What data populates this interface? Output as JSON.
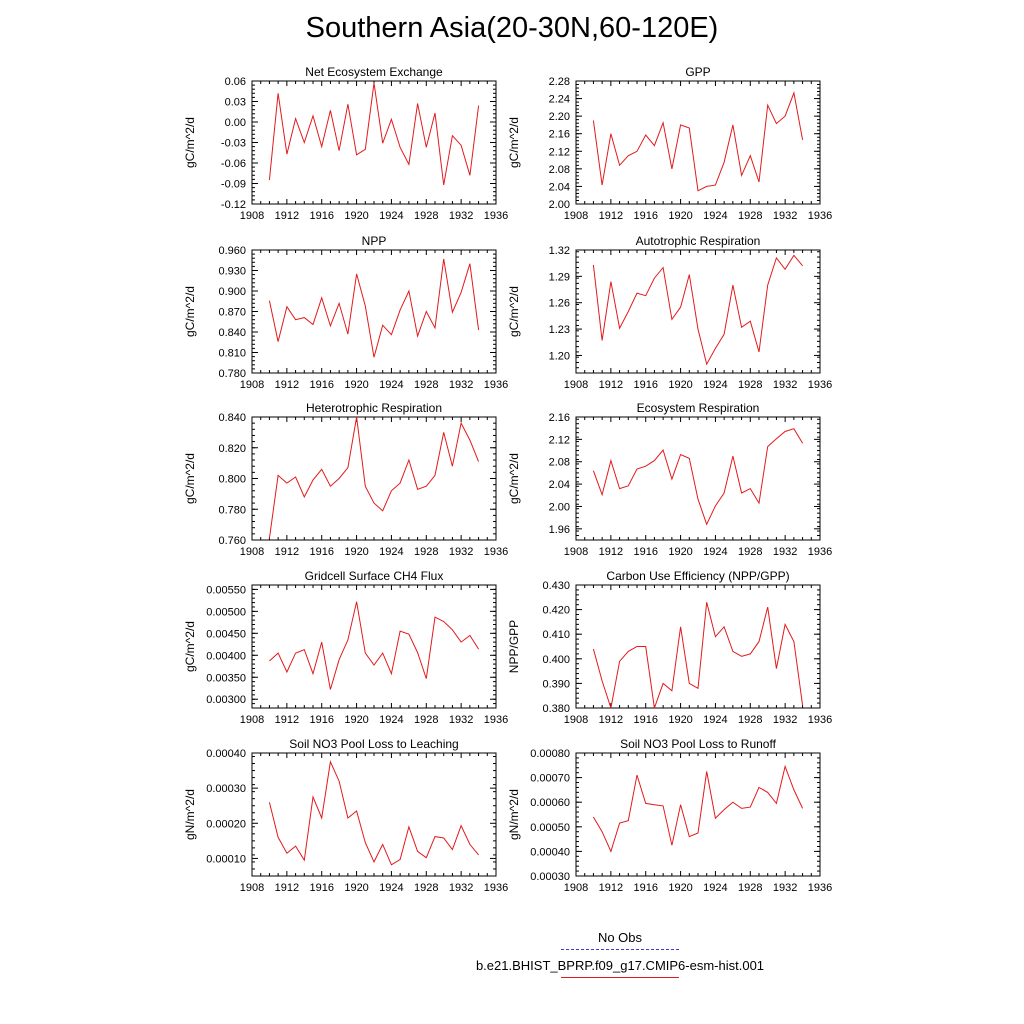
{
  "title": "Southern Asia(20-30N,60-120E)",
  "legend": {
    "obs_label": "No Obs",
    "obs_color": "#3b3bd6",
    "model_label": "b.e21.BHIST_BPRP.f09_g17.CMIP6-esm-hist.001",
    "model_color": "#e31a1c"
  },
  "chart_data": [
    {
      "type": "line",
      "title": "Net Ecosystem Exchange",
      "ylabel": "gC/m^2/d",
      "xlim": [
        1908,
        1936
      ],
      "xticks": [
        1908,
        1912,
        1916,
        1920,
        1924,
        1928,
        1932,
        1936
      ],
      "xtick_labels": [
        "1908",
        "1912",
        "1916",
        "1920",
        "1924",
        "1928",
        "1932",
        "1936"
      ],
      "ylim": [
        -0.12,
        0.06
      ],
      "yticks": [
        -0.12,
        -0.09,
        -0.06,
        -0.03,
        0.0,
        0.03,
        0.06
      ],
      "ytick_labels": [
        "-0.12",
        "-0.09",
        "-0.06",
        "-0.03",
        "0.00",
        "0.03",
        "0.06"
      ],
      "x": [
        1910,
        1911,
        1912,
        1913,
        1914,
        1915,
        1916,
        1917,
        1918,
        1919,
        1920,
        1921,
        1922,
        1923,
        1924,
        1925,
        1926,
        1927,
        1928,
        1929,
        1930,
        1931,
        1932,
        1933,
        1934
      ],
      "values": [
        -0.085,
        0.042,
        -0.047,
        0.005,
        -0.03,
        0.009,
        -0.036,
        0.017,
        -0.042,
        0.026,
        -0.048,
        -0.04,
        0.057,
        -0.031,
        0.004,
        -0.037,
        -0.062,
        0.027,
        -0.037,
        0.013,
        -0.092,
        -0.02,
        -0.034,
        -0.078,
        0.024
      ]
    },
    {
      "type": "line",
      "title": "GPP",
      "ylabel": "gC/m^2/d",
      "xlim": [
        1908,
        1936
      ],
      "xticks": [
        1908,
        1912,
        1916,
        1920,
        1924,
        1928,
        1932,
        1936
      ],
      "xtick_labels": [
        "1908",
        "1912",
        "1916",
        "1920",
        "1924",
        "1928",
        "1932",
        "1936"
      ],
      "ylim": [
        2.0,
        2.28
      ],
      "yticks": [
        2.0,
        2.04,
        2.08,
        2.12,
        2.16,
        2.2,
        2.24,
        2.28
      ],
      "ytick_labels": [
        "2.00",
        "2.04",
        "2.08",
        "2.12",
        "2.16",
        "2.20",
        "2.24",
        "2.28"
      ],
      "x": [
        1910,
        1911,
        1912,
        1913,
        1914,
        1915,
        1916,
        1917,
        1918,
        1919,
        1920,
        1921,
        1922,
        1923,
        1924,
        1925,
        1926,
        1927,
        1928,
        1929,
        1930,
        1931,
        1932,
        1933,
        1934
      ],
      "values": [
        2.19,
        2.043,
        2.16,
        2.088,
        2.11,
        2.12,
        2.157,
        2.133,
        2.185,
        2.08,
        2.18,
        2.173,
        2.03,
        2.04,
        2.043,
        2.095,
        2.18,
        2.065,
        2.11,
        2.05,
        2.225,
        2.183,
        2.2,
        2.253,
        2.146
      ]
    },
    {
      "type": "line",
      "title": "NPP",
      "ylabel": "gC/m^2/d",
      "xlim": [
        1908,
        1936
      ],
      "xticks": [
        1908,
        1912,
        1916,
        1920,
        1924,
        1928,
        1932,
        1936
      ],
      "xtick_labels": [
        "1908",
        "1912",
        "1916",
        "1920",
        "1924",
        "1928",
        "1932",
        "1936"
      ],
      "ylim": [
        0.78,
        0.96
      ],
      "yticks": [
        0.78,
        0.81,
        0.84,
        0.87,
        0.9,
        0.93,
        0.96
      ],
      "ytick_labels": [
        "0.780",
        "0.810",
        "0.840",
        "0.870",
        "0.900",
        "0.930",
        "0.960"
      ],
      "x": [
        1910,
        1911,
        1912,
        1913,
        1914,
        1915,
        1916,
        1917,
        1918,
        1919,
        1920,
        1921,
        1922,
        1923,
        1924,
        1925,
        1926,
        1927,
        1928,
        1929,
        1930,
        1931,
        1932,
        1933,
        1934
      ],
      "values": [
        0.886,
        0.826,
        0.877,
        0.858,
        0.861,
        0.851,
        0.89,
        0.849,
        0.882,
        0.837,
        0.925,
        0.878,
        0.803,
        0.85,
        0.836,
        0.872,
        0.9,
        0.834,
        0.87,
        0.846,
        0.947,
        0.869,
        0.898,
        0.94,
        0.843
      ]
    },
    {
      "type": "line",
      "title": "Autotrophic Respiration",
      "ylabel": "gC/m^2/d",
      "xlim": [
        1908,
        1936
      ],
      "xticks": [
        1908,
        1912,
        1916,
        1920,
        1924,
        1928,
        1932,
        1936
      ],
      "xtick_labels": [
        "1908",
        "1912",
        "1916",
        "1920",
        "1924",
        "1928",
        "1932",
        "1936"
      ],
      "ylim": [
        1.18,
        1.32
      ],
      "yticks": [
        1.2,
        1.23,
        1.26,
        1.29,
        1.32
      ],
      "ytick_labels": [
        "1.20",
        "1.23",
        "1.26",
        "1.29",
        "1.32"
      ],
      "x": [
        1910,
        1911,
        1912,
        1913,
        1914,
        1915,
        1916,
        1917,
        1918,
        1919,
        1920,
        1921,
        1922,
        1923,
        1924,
        1925,
        1926,
        1927,
        1928,
        1929,
        1930,
        1931,
        1932,
        1933,
        1934
      ],
      "values": [
        1.303,
        1.217,
        1.284,
        1.231,
        1.25,
        1.271,
        1.268,
        1.288,
        1.3,
        1.241,
        1.255,
        1.292,
        1.23,
        1.19,
        1.208,
        1.224,
        1.28,
        1.232,
        1.239,
        1.204,
        1.28,
        1.311,
        1.298,
        1.314,
        1.302
      ]
    },
    {
      "type": "line",
      "title": "Heterotrophic Respiration",
      "ylabel": "gC/m^2/d",
      "xlim": [
        1908,
        1936
      ],
      "xticks": [
        1908,
        1912,
        1916,
        1920,
        1924,
        1928,
        1932,
        1936
      ],
      "xtick_labels": [
        "1908",
        "1912",
        "1916",
        "1920",
        "1924",
        "1928",
        "1932",
        "1936"
      ],
      "ylim": [
        0.76,
        0.84
      ],
      "yticks": [
        0.76,
        0.78,
        0.8,
        0.82,
        0.84
      ],
      "ytick_labels": [
        "0.760",
        "0.780",
        "0.800",
        "0.820",
        "0.840"
      ],
      "x": [
        1910,
        1911,
        1912,
        1913,
        1914,
        1915,
        1916,
        1917,
        1918,
        1919,
        1920,
        1921,
        1922,
        1923,
        1924,
        1925,
        1926,
        1927,
        1928,
        1929,
        1930,
        1931,
        1932,
        1933,
        1934
      ],
      "values": [
        0.761,
        0.802,
        0.797,
        0.801,
        0.788,
        0.799,
        0.806,
        0.795,
        0.8,
        0.807,
        0.84,
        0.795,
        0.784,
        0.779,
        0.792,
        0.797,
        0.812,
        0.793,
        0.795,
        0.802,
        0.83,
        0.808,
        0.836,
        0.825,
        0.811
      ]
    },
    {
      "type": "line",
      "title": "Ecosystem Respiration",
      "ylabel": "gC/m^2/d",
      "xlim": [
        1908,
        1936
      ],
      "xticks": [
        1908,
        1912,
        1916,
        1920,
        1924,
        1928,
        1932,
        1936
      ],
      "xtick_labels": [
        "1908",
        "1912",
        "1916",
        "1920",
        "1924",
        "1928",
        "1932",
        "1936"
      ],
      "ylim": [
        1.94,
        2.16
      ],
      "yticks": [
        1.96,
        2.0,
        2.04,
        2.08,
        2.12,
        2.16
      ],
      "ytick_labels": [
        "1.96",
        "2.00",
        "2.04",
        "2.08",
        "2.12",
        "2.16"
      ],
      "x": [
        1910,
        1911,
        1912,
        1913,
        1914,
        1915,
        1916,
        1917,
        1918,
        1919,
        1920,
        1921,
        1922,
        1923,
        1924,
        1925,
        1926,
        1927,
        1928,
        1929,
        1930,
        1931,
        1932,
        1933,
        1934
      ],
      "values": [
        2.064,
        2.021,
        2.082,
        2.032,
        2.037,
        2.067,
        2.072,
        2.082,
        2.101,
        2.049,
        2.093,
        2.086,
        2.013,
        1.968,
        2.001,
        2.024,
        2.09,
        2.024,
        2.032,
        2.006,
        2.107,
        2.121,
        2.134,
        2.139,
        2.113
      ]
    },
    {
      "type": "line",
      "title": "Gridcell Surface CH4 Flux",
      "ylabel": "gC/m^2/d",
      "xlim": [
        1908,
        1936
      ],
      "xticks": [
        1908,
        1912,
        1916,
        1920,
        1924,
        1928,
        1932,
        1936
      ],
      "xtick_labels": [
        "1908",
        "1912",
        "1916",
        "1920",
        "1924",
        "1928",
        "1932",
        "1936"
      ],
      "ylim": [
        0.0028,
        0.0056
      ],
      "yticks": [
        0.003,
        0.0035,
        0.004,
        0.0045,
        0.005,
        0.0055
      ],
      "ytick_labels": [
        "0.00300",
        "0.00350",
        "0.00400",
        "0.00450",
        "0.00500",
        "0.00550"
      ],
      "x": [
        1910,
        1911,
        1912,
        1913,
        1914,
        1915,
        1916,
        1917,
        1918,
        1919,
        1920,
        1921,
        1922,
        1923,
        1924,
        1925,
        1926,
        1927,
        1928,
        1929,
        1930,
        1931,
        1932,
        1933,
        1934
      ],
      "values": [
        0.00387,
        0.00405,
        0.00362,
        0.00405,
        0.00413,
        0.00358,
        0.0043,
        0.00322,
        0.0039,
        0.00435,
        0.00522,
        0.00405,
        0.00378,
        0.00405,
        0.00358,
        0.00455,
        0.00448,
        0.00406,
        0.00347,
        0.00487,
        0.00477,
        0.00458,
        0.0043,
        0.00445,
        0.00414
      ]
    },
    {
      "type": "line",
      "title": "Carbon Use Efficiency (NPP/GPP)",
      "ylabel": "NPP/GPP",
      "xlim": [
        1908,
        1936
      ],
      "xticks": [
        1908,
        1912,
        1916,
        1920,
        1924,
        1928,
        1932,
        1936
      ],
      "xtick_labels": [
        "1908",
        "1912",
        "1916",
        "1920",
        "1924",
        "1928",
        "1932",
        "1936"
      ],
      "ylim": [
        0.38,
        0.43
      ],
      "yticks": [
        0.38,
        0.39,
        0.4,
        0.41,
        0.42,
        0.43
      ],
      "ytick_labels": [
        "0.380",
        "0.390",
        "0.400",
        "0.410",
        "0.420",
        "0.430"
      ],
      "x": [
        1910,
        1911,
        1912,
        1913,
        1914,
        1915,
        1916,
        1917,
        1918,
        1919,
        1920,
        1921,
        1922,
        1923,
        1924,
        1925,
        1926,
        1927,
        1928,
        1929,
        1930,
        1931,
        1932,
        1933,
        1934
      ],
      "values": [
        0.404,
        0.391,
        0.38,
        0.399,
        0.403,
        0.405,
        0.405,
        0.38,
        0.39,
        0.387,
        0.413,
        0.39,
        0.388,
        0.423,
        0.409,
        0.413,
        0.403,
        0.401,
        0.402,
        0.407,
        0.421,
        0.396,
        0.414,
        0.407,
        0.381
      ]
    },
    {
      "type": "line",
      "title": "Soil NO3 Pool Loss to Leaching",
      "ylabel": "gN/m^2/d",
      "xlim": [
        1908,
        1936
      ],
      "xticks": [
        1908,
        1912,
        1916,
        1920,
        1924,
        1928,
        1932,
        1936
      ],
      "xtick_labels": [
        "1908",
        "1912",
        "1916",
        "1920",
        "1924",
        "1928",
        "1932",
        "1936"
      ],
      "ylim": [
        5e-05,
        0.0004
      ],
      "yticks": [
        0.0001,
        0.0002,
        0.0003,
        0.0004
      ],
      "ytick_labels": [
        "0.00010",
        "0.00020",
        "0.00030",
        "0.00040"
      ],
      "x": [
        1910,
        1911,
        1912,
        1913,
        1914,
        1915,
        1916,
        1917,
        1918,
        1919,
        1920,
        1921,
        1922,
        1923,
        1924,
        1925,
        1926,
        1927,
        1928,
        1929,
        1930,
        1931,
        1932,
        1933,
        1934
      ],
      "values": [
        0.00026,
        0.00016,
        0.000115,
        0.000135,
        9.5e-05,
        0.000275,
        0.000215,
        0.000375,
        0.00032,
        0.000215,
        0.000235,
        0.000145,
        9e-05,
        0.00014,
        8.2e-05,
        9.7e-05,
        0.00019,
        0.00012,
        0.000102,
        0.000162,
        0.000158,
        0.000125,
        0.000193,
        0.00014,
        0.00011
      ]
    },
    {
      "type": "line",
      "title": "Soil NO3 Pool Loss to Runoff",
      "ylabel": "gN/m^2/d",
      "xlim": [
        1908,
        1936
      ],
      "xticks": [
        1908,
        1912,
        1916,
        1920,
        1924,
        1928,
        1932,
        1936
      ],
      "xtick_labels": [
        "1908",
        "1912",
        "1916",
        "1920",
        "1924",
        "1928",
        "1932",
        "1936"
      ],
      "ylim": [
        0.0003,
        0.0008
      ],
      "yticks": [
        0.0003,
        0.0004,
        0.0005,
        0.0006,
        0.0007,
        0.0008
      ],
      "ytick_labels": [
        "0.00030",
        "0.00040",
        "0.00050",
        "0.00060",
        "0.00070",
        "0.00080"
      ],
      "x": [
        1910,
        1911,
        1912,
        1913,
        1914,
        1915,
        1916,
        1917,
        1918,
        1919,
        1920,
        1921,
        1922,
        1923,
        1924,
        1925,
        1926,
        1927,
        1928,
        1929,
        1930,
        1931,
        1932,
        1933,
        1934
      ],
      "values": [
        0.00054,
        0.00048,
        0.0004,
        0.000515,
        0.000525,
        0.00071,
        0.000595,
        0.00059,
        0.000585,
        0.000425,
        0.00059,
        0.00046,
        0.000475,
        0.000725,
        0.000535,
        0.00057,
        0.0006,
        0.000575,
        0.00058,
        0.00066,
        0.00064,
        0.000595,
        0.000745,
        0.00065,
        0.000575
      ]
    }
  ]
}
